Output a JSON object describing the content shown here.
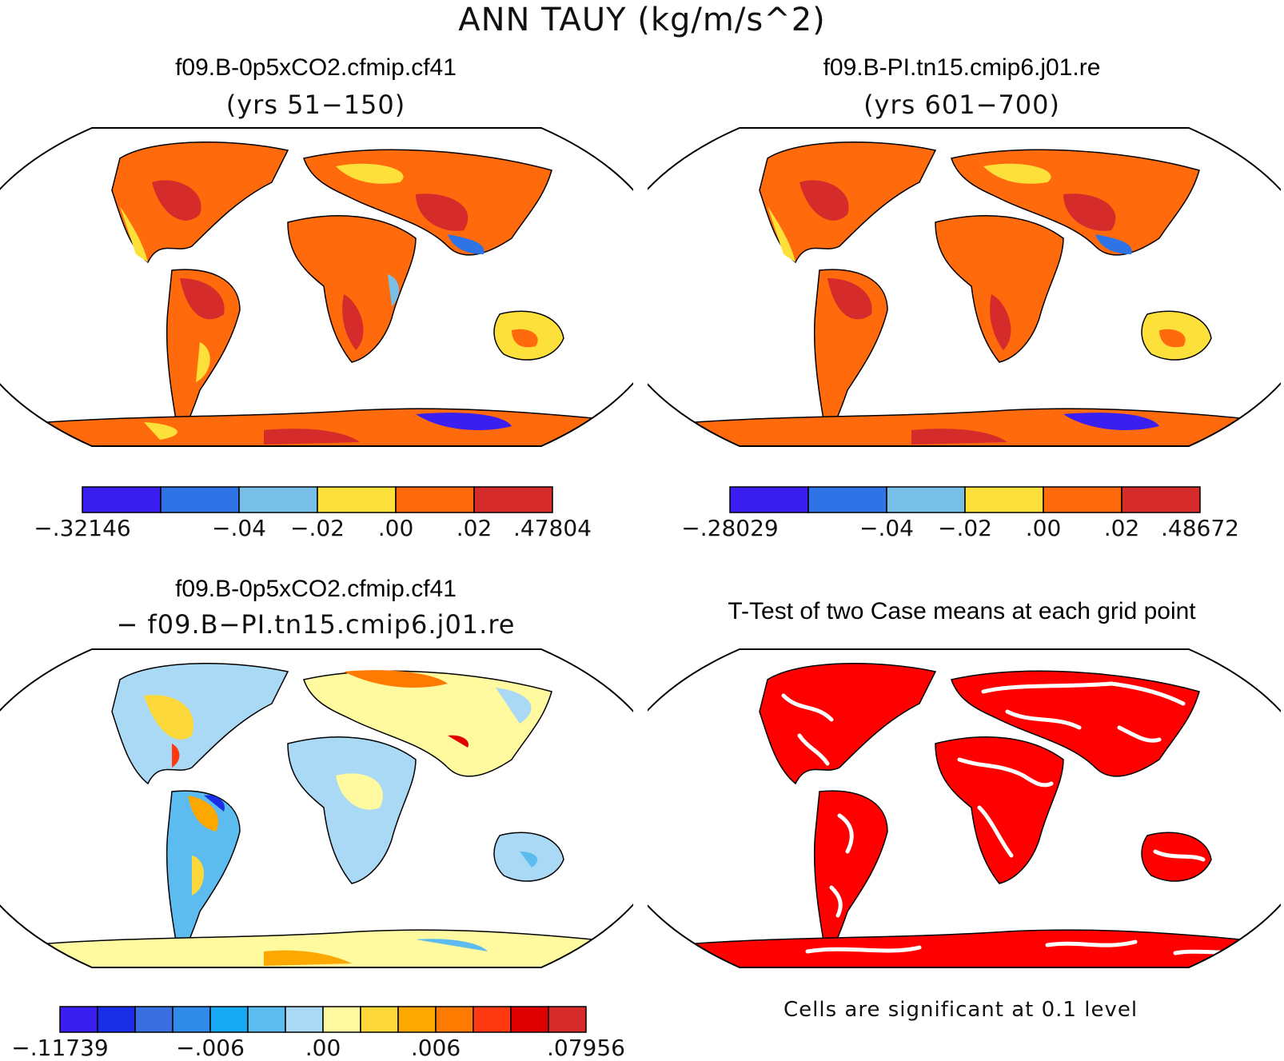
{
  "figure_title": "ANN TAUY (kg/m/s^2)",
  "panels": {
    "top_left": {
      "title": "f09.B-0p5xCO2.cfmip.cf41",
      "subtitle": "(yrs 51−150)"
    },
    "top_right": {
      "title": "f09.B-PI.tn15.cmip6.j01.re",
      "subtitle": "(yrs 601−700)"
    },
    "bottom_left": {
      "title": "f09.B-0p5xCO2.cfmip.cf41",
      "subtitle": "− f09.B−PI.tn15.cmip6.j01.re"
    },
    "bottom_right": {
      "title": "T-Test of two Case means at each grid point",
      "note": "Cells are significant at 0.1 level"
    }
  },
  "colorbars": {
    "top_left": {
      "colors": [
        "#3a1ff0",
        "#2f74e6",
        "#78bfe8",
        "#fde03a",
        "#ff6a0d",
        "#d62b2b"
      ],
      "labels": [
        "−.32146",
        "−.04",
        "−.02",
        ".00",
        ".02",
        ".47804"
      ],
      "label_bins": [
        0,
        2,
        3,
        4,
        5,
        6
      ]
    },
    "top_right": {
      "colors": [
        "#3a1ff0",
        "#2f74e6",
        "#78bfe8",
        "#fde03a",
        "#ff6a0d",
        "#d62b2b"
      ],
      "labels": [
        "−.28029",
        "−.04",
        "−.02",
        ".00",
        ".02",
        ".48672"
      ],
      "label_bins": [
        0,
        2,
        3,
        4,
        5,
        6
      ]
    },
    "bottom_left": {
      "colors": [
        "#3a1ff0",
        "#1a2ee8",
        "#3a6fe0",
        "#2f8ae8",
        "#16a8f0",
        "#5cbcf0",
        "#a9d9f4",
        "#fffaa0",
        "#fcd83a",
        "#fda800",
        "#ff7a00",
        "#ff3a12",
        "#e00000",
        "#d62b2b"
      ],
      "labels": [
        "−.11739",
        "−.006",
        ".00",
        ".006",
        ".07956"
      ],
      "label_bins": [
        0,
        4,
        7,
        10,
        14
      ]
    }
  },
  "map_colors": {
    "ocean": "#ffffff",
    "coast": "#000000",
    "significant": "#ff0000"
  }
}
